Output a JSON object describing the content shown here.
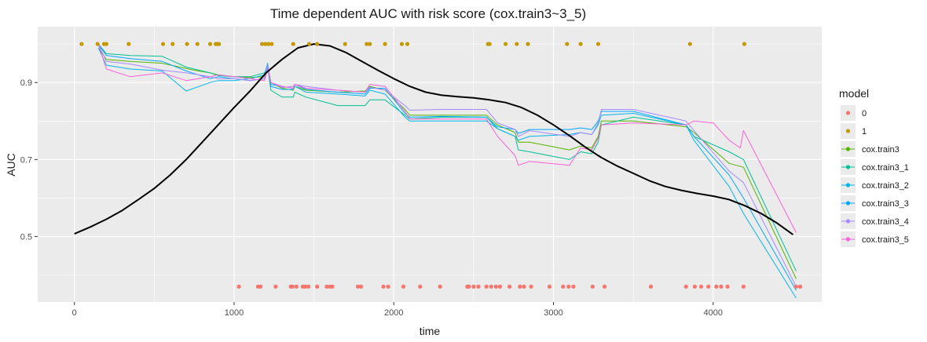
{
  "chart_data": {
    "type": "line",
    "title": "Time dependent AUC with risk score (cox.train3~3_5)",
    "xlabel": "time",
    "ylabel": "AUC",
    "xlim": [
      -230,
      4680
    ],
    "ylim": [
      0.33,
      1.045
    ],
    "x_ticks": [
      0,
      1000,
      2000,
      3000,
      4000
    ],
    "y_ticks": [
      0.5,
      0.7,
      0.9
    ],
    "x_tick_labels": [
      "0",
      "1000",
      "2000",
      "3000",
      "4000"
    ],
    "y_tick_labels": [
      "0.5",
      "0.7",
      "0.9"
    ],
    "grid": true,
    "legend_position": "right",
    "legend_title": "model",
    "legend": [
      {
        "name": "0",
        "color": "#F8766D"
      },
      {
        "name": "1",
        "color": "#C49A00"
      },
      {
        "name": "cox.train3",
        "color": "#53B400"
      },
      {
        "name": "cox.train3_1",
        "color": "#00C094"
      },
      {
        "name": "cox.train3_2",
        "color": "#00B6EB"
      },
      {
        "name": "cox.train3_3",
        "color": "#00A9FF"
      },
      {
        "name": "cox.train3_4",
        "color": "#A58AFF"
      },
      {
        "name": "cox.train3_5",
        "color": "#FB61D7"
      }
    ],
    "points_status1": {
      "y": 1.0,
      "x": [
        45,
        145,
        185,
        200,
        340,
        555,
        615,
        705,
        770,
        850,
        885,
        895,
        905,
        1175,
        1195,
        1215,
        1235,
        1370,
        1470,
        1520,
        1695,
        1830,
        1850,
        1945,
        2050,
        2085,
        2590,
        2600,
        2700,
        2770,
        2840,
        3085,
        3170,
        3280,
        3855,
        4195
      ]
    },
    "points_status0": {
      "y": 0.37,
      "x": [
        1030,
        1150,
        1165,
        1260,
        1355,
        1365,
        1390,
        1430,
        1445,
        1465,
        1520,
        1580,
        1600,
        1615,
        1775,
        1795,
        1935,
        1965,
        2060,
        2165,
        2290,
        2460,
        2470,
        2500,
        2530,
        2580,
        2610,
        2640,
        2665,
        2725,
        2790,
        2815,
        2860,
        2975,
        3060,
        3095,
        3125,
        3245,
        3320,
        3610,
        3830,
        3885,
        3925,
        3970,
        4020,
        4050,
        4090,
        4190,
        4520,
        4545
      ]
    },
    "smooth": {
      "name": "",
      "color": "#000000",
      "x": [
        0,
        100,
        200,
        300,
        400,
        500,
        600,
        700,
        800,
        900,
        1000,
        1100,
        1200,
        1300,
        1400,
        1500,
        1600,
        1700,
        1800,
        1900,
        2000,
        2100,
        2200,
        2300,
        2400,
        2500,
        2600,
        2700,
        2800,
        2900,
        3000,
        3100,
        3200,
        3300,
        3400,
        3500,
        3600,
        3700,
        3800,
        3900,
        4000,
        4100,
        4200,
        4300,
        4400,
        4500
      ],
      "y": [
        0.507,
        0.525,
        0.545,
        0.568,
        0.596,
        0.625,
        0.66,
        0.7,
        0.745,
        0.79,
        0.835,
        0.878,
        0.925,
        0.96,
        0.99,
        1.0,
        0.995,
        0.978,
        0.955,
        0.932,
        0.91,
        0.89,
        0.875,
        0.867,
        0.863,
        0.86,
        0.855,
        0.848,
        0.835,
        0.815,
        0.79,
        0.762,
        0.732,
        0.705,
        0.683,
        0.664,
        0.645,
        0.63,
        0.62,
        0.612,
        0.605,
        0.596,
        0.58,
        0.56,
        0.535,
        0.505
      ]
    },
    "series": [
      {
        "name": "cox.train3",
        "color": "#53B400",
        "x": [
          150,
          200,
          350,
          550,
          750,
          850,
          900,
          1000,
          1100,
          1190,
          1210,
          1230,
          1300,
          1370,
          1380,
          1450,
          1650,
          1820,
          1850,
          1945,
          2070,
          2100,
          2300,
          2580,
          2650,
          2760,
          2780,
          2850,
          3100,
          3170,
          3240,
          3280,
          3300,
          3500,
          3830,
          3880,
          4100,
          4190,
          4520
        ],
        "y": [
          0.99,
          0.96,
          0.955,
          0.95,
          0.932,
          0.925,
          0.92,
          0.915,
          0.913,
          0.915,
          0.945,
          0.9,
          0.885,
          0.88,
          0.89,
          0.88,
          0.875,
          0.878,
          0.89,
          0.88,
          0.83,
          0.815,
          0.815,
          0.815,
          0.79,
          0.77,
          0.745,
          0.745,
          0.725,
          0.735,
          0.73,
          0.76,
          0.8,
          0.8,
          0.785,
          0.77,
          0.69,
          0.68,
          0.39
        ]
      },
      {
        "name": "cox.train3_1",
        "color": "#00C094",
        "x": [
          150,
          200,
          350,
          550,
          700,
          850,
          900,
          1000,
          1100,
          1190,
          1210,
          1230,
          1300,
          1370,
          1380,
          1450,
          1650,
          1820,
          1850,
          1945,
          2070,
          2100,
          2300,
          2580,
          2650,
          2760,
          2780,
          2850,
          3100,
          3170,
          3240,
          3280,
          3300,
          3500,
          3830,
          3880,
          4100,
          4190,
          4520
        ],
        "y": [
          1.0,
          0.975,
          0.97,
          0.968,
          0.94,
          0.925,
          0.918,
          0.915,
          0.915,
          0.925,
          0.94,
          0.88,
          0.862,
          0.862,
          0.875,
          0.862,
          0.84,
          0.84,
          0.855,
          0.855,
          0.815,
          0.805,
          0.81,
          0.81,
          0.78,
          0.76,
          0.725,
          0.72,
          0.7,
          0.72,
          0.715,
          0.745,
          0.79,
          0.81,
          0.79,
          0.76,
          0.72,
          0.7,
          0.41
        ]
      },
      {
        "name": "cox.train3_2",
        "color": "#00B6EB",
        "x": [
          150,
          200,
          350,
          550,
          700,
          850,
          900,
          1000,
          1100,
          1190,
          1210,
          1230,
          1300,
          1370,
          1380,
          1450,
          1650,
          1820,
          1850,
          1945,
          2070,
          2100,
          2300,
          2580,
          2650,
          2760,
          2780,
          2850,
          3100,
          3170,
          3240,
          3280,
          3300,
          3500,
          3830,
          3880,
          4100,
          4190,
          4520
        ],
        "y": [
          0.99,
          0.945,
          0.935,
          0.93,
          0.878,
          0.9,
          0.905,
          0.905,
          0.91,
          0.92,
          0.95,
          0.895,
          0.89,
          0.885,
          0.89,
          0.875,
          0.87,
          0.865,
          0.88,
          0.87,
          0.81,
          0.8,
          0.8,
          0.8,
          0.78,
          0.76,
          0.75,
          0.76,
          0.765,
          0.77,
          0.765,
          0.79,
          0.815,
          0.82,
          0.79,
          0.75,
          0.63,
          0.56,
          0.34
        ]
      },
      {
        "name": "cox.train3_3",
        "color": "#00A9FF",
        "x": [
          150,
          200,
          350,
          550,
          700,
          850,
          900,
          1000,
          1100,
          1190,
          1210,
          1230,
          1300,
          1370,
          1380,
          1450,
          1650,
          1820,
          1850,
          1945,
          2070,
          2100,
          2300,
          2580,
          2650,
          2760,
          2780,
          2850,
          3100,
          3170,
          3240,
          3280,
          3300,
          3500,
          3830,
          3880,
          4100,
          4190,
          4520
        ],
        "y": [
          1.0,
          0.97,
          0.962,
          0.955,
          0.93,
          0.91,
          0.915,
          0.91,
          0.905,
          0.91,
          0.945,
          0.89,
          0.882,
          0.882,
          0.895,
          0.882,
          0.875,
          0.87,
          0.885,
          0.885,
          0.82,
          0.81,
          0.812,
          0.81,
          0.785,
          0.778,
          0.768,
          0.778,
          0.778,
          0.782,
          0.778,
          0.8,
          0.825,
          0.825,
          0.79,
          0.76,
          0.66,
          0.6,
          0.36
        ]
      },
      {
        "name": "cox.train3_4",
        "color": "#A58AFF",
        "x": [
          150,
          200,
          350,
          550,
          700,
          850,
          900,
          1000,
          1100,
          1190,
          1210,
          1230,
          1300,
          1370,
          1380,
          1450,
          1650,
          1820,
          1850,
          1945,
          2070,
          2100,
          2300,
          2580,
          2650,
          2760,
          2780,
          2850,
          3100,
          3170,
          3240,
          3280,
          3300,
          3500,
          3830,
          3880,
          4100,
          4190,
          4520
        ],
        "y": [
          1.0,
          0.955,
          0.948,
          0.932,
          0.925,
          0.915,
          0.91,
          0.91,
          0.905,
          0.91,
          0.945,
          0.9,
          0.887,
          0.89,
          0.895,
          0.89,
          0.88,
          0.875,
          0.888,
          0.88,
          0.84,
          0.828,
          0.83,
          0.83,
          0.795,
          0.778,
          0.76,
          0.775,
          0.76,
          0.77,
          0.765,
          0.795,
          0.83,
          0.83,
          0.8,
          0.775,
          0.67,
          0.64,
          0.37
        ]
      },
      {
        "name": "cox.train3_5",
        "color": "#FB61D7",
        "x": [
          150,
          200,
          350,
          550,
          700,
          850,
          900,
          1000,
          1100,
          1190,
          1210,
          1230,
          1300,
          1370,
          1380,
          1450,
          1650,
          1820,
          1850,
          1945,
          2070,
          2100,
          2300,
          2580,
          2650,
          2760,
          2780,
          2850,
          3100,
          3170,
          3240,
          3280,
          3300,
          3500,
          3830,
          3880,
          4000,
          4100,
          4170,
          4190,
          4520
        ],
        "y": [
          1.0,
          0.935,
          0.915,
          0.925,
          0.905,
          0.915,
          0.92,
          0.915,
          0.91,
          0.905,
          0.935,
          0.9,
          0.89,
          0.885,
          0.895,
          0.885,
          0.88,
          0.875,
          0.895,
          0.89,
          0.825,
          0.805,
          0.805,
          0.805,
          0.76,
          0.71,
          0.685,
          0.695,
          0.685,
          0.73,
          0.725,
          0.755,
          0.79,
          0.795,
          0.79,
          0.8,
          0.795,
          0.75,
          0.73,
          0.775,
          0.51
        ]
      }
    ]
  }
}
